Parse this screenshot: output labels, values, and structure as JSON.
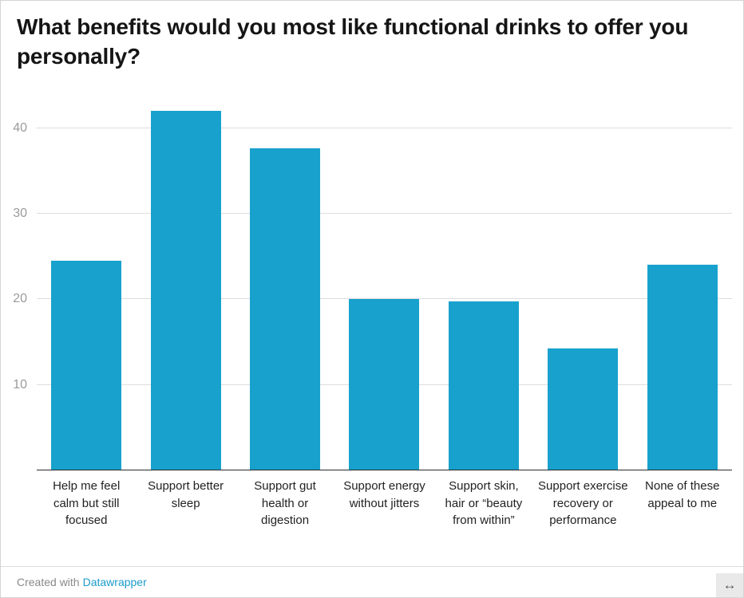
{
  "title": "What benefits would you most like functional drinks to offer you personally?",
  "footer": {
    "created_with": "Created with",
    "link_label": "Datawrapper",
    "resize_icon": "↔"
  },
  "colors": {
    "bar": "#18a1cd",
    "grid": "#dddddd",
    "axis": "#2b2b2b",
    "link": "#1d9bc9",
    "tick_label": "#9b9b9b"
  },
  "chart_data": {
    "type": "bar",
    "title": "What benefits would you most like functional drinks to offer you personally?",
    "categories": [
      "Help me feel calm but still focused",
      "Support better sleep",
      "Support gut health or digestion",
      "Support energy without jitters",
      "Support skin, hair or “beauty from within”",
      "Support exercise recovery or performance",
      "None of these appeal to me"
    ],
    "values": [
      24.5,
      42,
      37.6,
      20,
      19.7,
      14.2,
      24
    ],
    "xlabel": "",
    "ylabel": "",
    "ylim": [
      0,
      44
    ],
    "y_ticks": [
      10,
      20,
      30,
      40
    ],
    "grid": true,
    "legend": false,
    "bar_color": "#18a1cd"
  }
}
